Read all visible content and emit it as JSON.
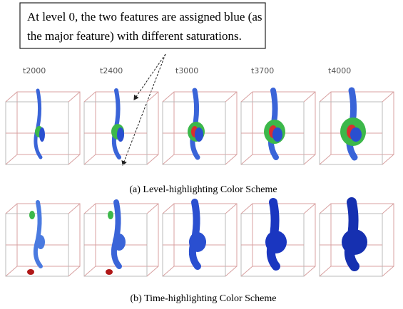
{
  "callout": {
    "lines": [
      "At level 0, the two features are assigned blue (as",
      "the major feature) with different saturations."
    ]
  },
  "time_labels": [
    "t2000",
    "t2400",
    "t3000",
    "t3700",
    "t4000"
  ],
  "captions": [
    "(a) Level-highlighting Color Scheme",
    "(b) Time-highlighting Color Scheme"
  ]
}
